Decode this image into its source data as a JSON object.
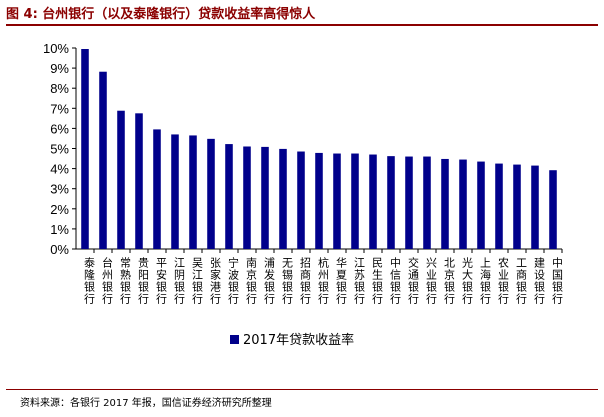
{
  "figure": {
    "title": "图 4: 台州银行（以及泰隆银行）贷款收益率高得惊人",
    "source": "资料来源：各银行 2017 年报，国信证券经济研究所整理"
  },
  "chart_data": {
    "type": "bar",
    "categories": [
      "泰隆银行",
      "台州银行",
      "常熟银行",
      "贵阳银行",
      "平安银行",
      "江阴银行",
      "吴江银行",
      "张家港行",
      "宁波银行",
      "南京银行",
      "浦发银行",
      "无锡银行",
      "招商银行",
      "杭州银行",
      "华夏银行",
      "江苏银行",
      "民生银行",
      "中信银行",
      "交通银行",
      "兴业银行",
      "北京银行",
      "光大银行",
      "上海银行",
      "农业银行",
      "工商银行",
      "建设银行",
      "中国银行"
    ],
    "series": [
      {
        "name": "2017年贷款收益率",
        "values": [
          9.95,
          8.82,
          6.88,
          6.75,
          5.95,
          5.7,
          5.65,
          5.48,
          5.22,
          5.1,
          5.08,
          4.98,
          4.85,
          4.78,
          4.75,
          4.75,
          4.7,
          4.62,
          4.6,
          4.6,
          4.48,
          4.45,
          4.35,
          4.25,
          4.2,
          4.15,
          3.92
        ]
      }
    ],
    "yticks": [
      "0%",
      "1%",
      "2%",
      "3%",
      "4%",
      "5%",
      "6%",
      "7%",
      "8%",
      "9%",
      "10%"
    ],
    "ylim": [
      0,
      10
    ],
    "grid": false,
    "legend": "bottom",
    "colors": {
      "bar": "#00008b",
      "axis": "#000000",
      "title": "#8b0000"
    }
  }
}
